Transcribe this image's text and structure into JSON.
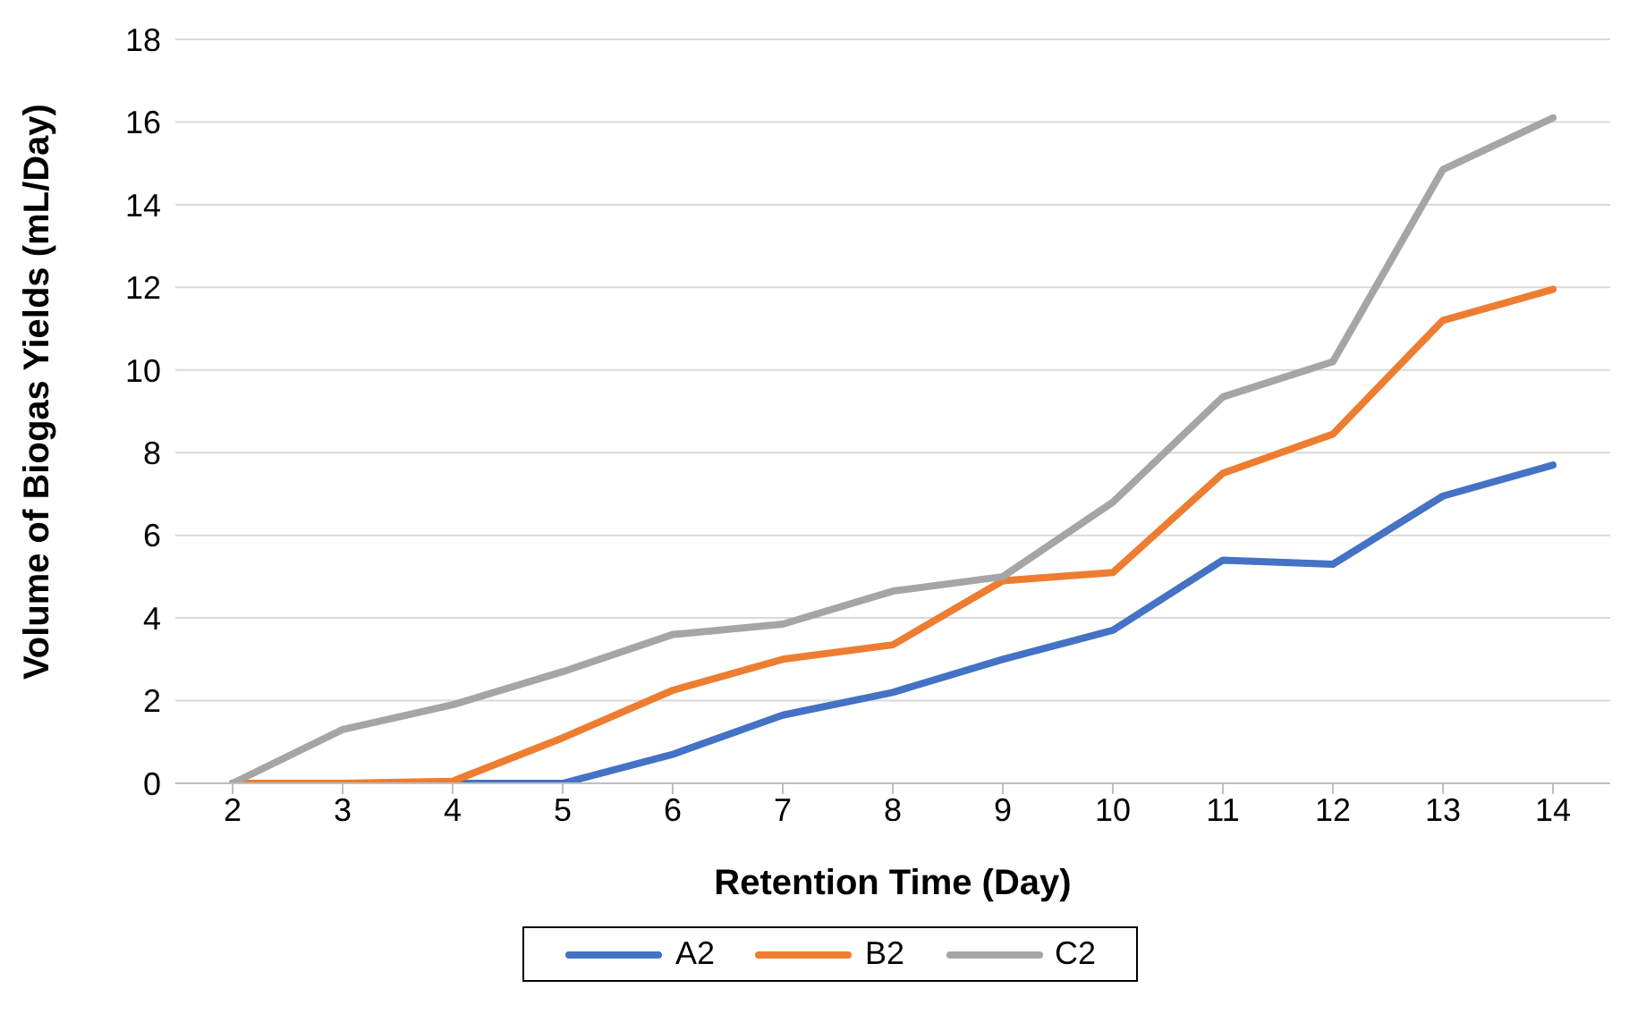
{
  "chart_data": {
    "type": "line",
    "xlabel": "Retention Time (Day)",
    "ylabel": "Volume of Biogas Yields (mL/Day)",
    "categories": [
      "2",
      "3",
      "4",
      "5",
      "6",
      "7",
      "8",
      "9",
      "10",
      "11",
      "12",
      "13",
      "14"
    ],
    "series": [
      {
        "name": "A2",
        "color": "#4472c4",
        "values": [
          0,
          0,
          0,
          0,
          0.7,
          1.65,
          2.2,
          3.0,
          3.7,
          5.4,
          5.3,
          6.95,
          7.7
        ]
      },
      {
        "name": "B2",
        "color": "#ed7d31",
        "values": [
          0,
          0,
          0.05,
          1.1,
          2.25,
          3.0,
          3.35,
          4.9,
          5.1,
          7.5,
          8.45,
          11.2,
          11.95
        ]
      },
      {
        "name": "C2",
        "color": "#a5a5a5",
        "values": [
          0,
          1.3,
          1.9,
          2.7,
          3.6,
          3.85,
          4.65,
          5.0,
          6.8,
          9.35,
          10.2,
          14.85,
          16.1
        ]
      }
    ],
    "ylim": [
      0,
      18
    ],
    "yticks": [
      0,
      2,
      4,
      6,
      8,
      10,
      12,
      14,
      16,
      18
    ],
    "grid": "y",
    "legend": "bottom",
    "marker": "none",
    "line_style": "solid"
  }
}
